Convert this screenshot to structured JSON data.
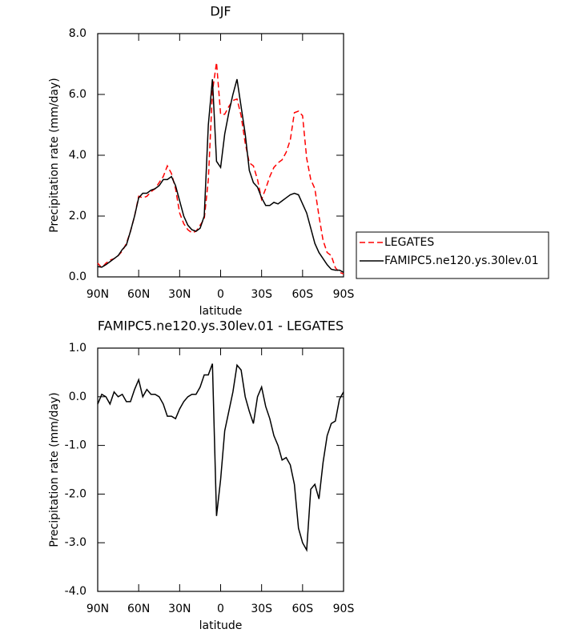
{
  "chart_data": [
    {
      "type": "line",
      "title": "DJF",
      "xlabel": "latitude",
      "ylabel": "Precipitation rate (mm/day)",
      "x": [
        90,
        87,
        84,
        81,
        78,
        75,
        72,
        69,
        66,
        63,
        60,
        57,
        54,
        51,
        48,
        45,
        42,
        39,
        36,
        33,
        30,
        27,
        24,
        21,
        18,
        15,
        12,
        9,
        6,
        3,
        0,
        -3,
        -6,
        -9,
        -12,
        -15,
        -18,
        -21,
        -24,
        -27,
        -30,
        -33,
        -36,
        -39,
        -42,
        -45,
        -48,
        -51,
        -54,
        -57,
        -60,
        -63,
        -66,
        -69,
        -72,
        -75,
        -78,
        -81,
        -84,
        -87,
        -90
      ],
      "series": [
        {
          "name": "LEGATES",
          "color": "#ff0000",
          "linestyle": "dashed",
          "values": [
            0.45,
            0.3,
            0.45,
            0.55,
            0.6,
            0.7,
            0.85,
            1.1,
            1.5,
            2.0,
            2.65,
            2.6,
            2.65,
            2.8,
            2.9,
            3.1,
            3.3,
            3.65,
            3.4,
            2.9,
            2.1,
            1.75,
            1.55,
            1.45,
            1.5,
            1.7,
            1.9,
            3.2,
            6.1,
            7.05,
            5.35,
            5.35,
            5.6,
            5.8,
            5.85,
            5.3,
            4.4,
            3.75,
            3.65,
            3.2,
            2.55,
            2.9,
            3.3,
            3.6,
            3.75,
            3.85,
            4.1,
            4.5,
            5.4,
            5.45,
            5.3,
            3.9,
            3.2,
            2.9,
            2.0,
            1.2,
            0.8,
            0.7,
            0.3,
            0.15,
            0.1
          ]
        },
        {
          "name": "FAMIPC5.ne120.ys.30lev.01",
          "color": "#000000",
          "linestyle": "solid",
          "values": [
            0.34,
            0.32,
            0.4,
            0.5,
            0.6,
            0.7,
            0.9,
            1.05,
            1.5,
            2.0,
            2.6,
            2.75,
            2.75,
            2.85,
            2.9,
            3.0,
            3.2,
            3.2,
            3.3,
            3.0,
            2.5,
            2.0,
            1.7,
            1.55,
            1.5,
            1.6,
            2.0,
            5.0,
            6.5,
            3.8,
            3.6,
            4.7,
            5.4,
            6.0,
            6.5,
            5.6,
            4.7,
            3.5,
            3.1,
            2.95,
            2.6,
            2.35,
            2.35,
            2.45,
            2.4,
            2.5,
            2.6,
            2.7,
            2.75,
            2.7,
            2.4,
            2.1,
            1.6,
            1.1,
            0.8,
            0.6,
            0.4,
            0.25,
            0.22,
            0.22,
            0.15
          ]
        }
      ],
      "xlim": [
        90,
        -90
      ],
      "xticks": [
        {
          "value": 90,
          "label": "90N"
        },
        {
          "value": 60,
          "label": "60N"
        },
        {
          "value": 30,
          "label": "30N"
        },
        0,
        {
          "value": -30,
          "label": "30S"
        },
        {
          "value": -60,
          "label": "60S"
        },
        {
          "value": -90,
          "label": "90S"
        }
      ],
      "ylim": [
        0,
        8
      ],
      "yticks": [
        {
          "value": 0,
          "label": "0.0"
        },
        {
          "value": 2,
          "label": "2.0"
        },
        {
          "value": 4,
          "label": "4.0"
        },
        {
          "value": 6,
          "label": "6.0"
        },
        {
          "value": 8,
          "label": "8.0"
        }
      ],
      "legend": "outside-right"
    },
    {
      "type": "line",
      "title": "FAMIPC5.ne120.ys.30lev.01 - LEGATES",
      "xlabel": "latitude",
      "ylabel": "Precipitation rate (mm/day)",
      "x": [
        90,
        87,
        84,
        81,
        78,
        75,
        72,
        69,
        66,
        63,
        60,
        57,
        54,
        51,
        48,
        45,
        42,
        39,
        36,
        33,
        30,
        27,
        24,
        21,
        18,
        15,
        12,
        9,
        6,
        3,
        0,
        -3,
        -6,
        -9,
        -12,
        -15,
        -18,
        -21,
        -24,
        -27,
        -30,
        -33,
        -36,
        -39,
        -42,
        -45,
        -48,
        -51,
        -54,
        -57,
        -60,
        -63,
        -66,
        -69,
        -72,
        -75,
        -78,
        -81,
        -84,
        -87,
        -90
      ],
      "values": [
        -0.15,
        0.05,
        0.0,
        -0.15,
        0.1,
        0.0,
        0.05,
        -0.1,
        -0.1,
        0.15,
        0.35,
        0.0,
        0.15,
        0.05,
        0.05,
        0.0,
        -0.15,
        -0.4,
        -0.4,
        -0.45,
        -0.25,
        -0.1,
        0.0,
        0.05,
        0.05,
        0.2,
        0.45,
        0.45,
        0.68,
        -2.45,
        -1.7,
        -0.7,
        -0.3,
        0.1,
        0.65,
        0.55,
        0.0,
        -0.3,
        -0.55,
        0.0,
        0.2,
        -0.2,
        -0.45,
        -0.8,
        -1.0,
        -1.3,
        -1.25,
        -1.4,
        -1.8,
        -2.7,
        -3.0,
        -3.15,
        -1.9,
        -1.8,
        -2.1,
        -1.35,
        -0.8,
        -0.55,
        -0.5,
        -0.05,
        0.1
      ],
      "color": "#000000",
      "xlim": [
        90,
        -90
      ],
      "xticks": [
        {
          "value": 90,
          "label": "90N"
        },
        {
          "value": 60,
          "label": "60N"
        },
        {
          "value": 30,
          "label": "30N"
        },
        0,
        {
          "value": -30,
          "label": "30S"
        },
        {
          "value": -60,
          "label": "60S"
        },
        {
          "value": -90,
          "label": "90S"
        }
      ],
      "ylim": [
        -4,
        1
      ],
      "yticks": [
        {
          "value": -4,
          "label": "-4.0"
        },
        {
          "value": -3,
          "label": "-3.0"
        },
        {
          "value": -2,
          "label": "-2.0"
        },
        {
          "value": -1,
          "label": "-1.0"
        },
        {
          "value": 0,
          "label": "0.0"
        },
        {
          "value": 1,
          "label": "1.0"
        }
      ]
    }
  ]
}
